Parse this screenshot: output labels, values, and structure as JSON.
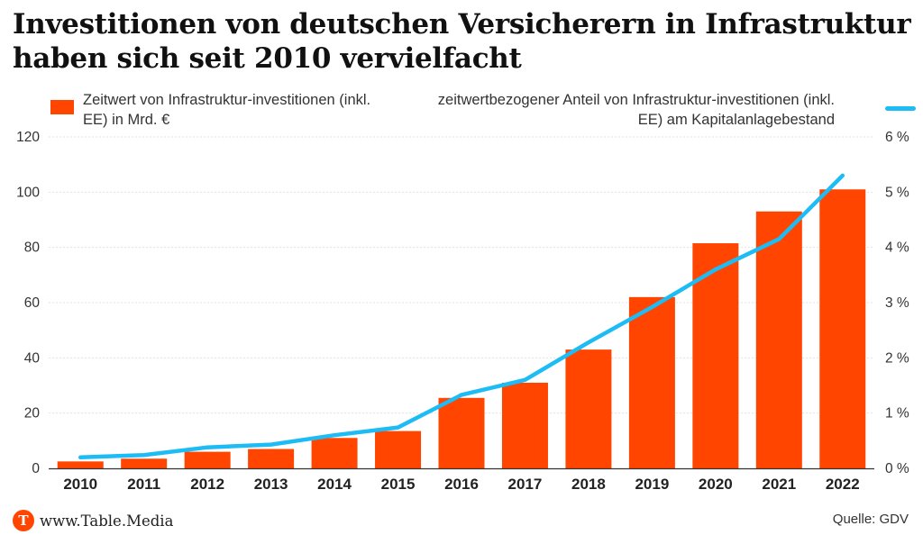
{
  "title": "Investitionen von deutschen Versicherern in Infrastruktur haben sich seit 2010 vervielfacht",
  "legend": {
    "bars_label": "Zeitwert von Infrastruktur-investitionen (inkl. EE) in Mrd. €",
    "line_label": "zeitwertbezogener Anteil von Infrastruktur-investitionen (inkl. EE) am Kapitalanlagebestand"
  },
  "footer": {
    "brand": "www.Table.Media",
    "source": "Quelle: GDV",
    "logo_letter": "T"
  },
  "colors": {
    "bar": "#ff4500",
    "line": "#1ebcf5",
    "logo": "#ff4500",
    "grid": "#e2e2e2"
  },
  "chart_data": {
    "type": "bar",
    "categories": [
      "2010",
      "2011",
      "2012",
      "2013",
      "2014",
      "2015",
      "2016",
      "2017",
      "2018",
      "2019",
      "2020",
      "2021",
      "2022"
    ],
    "series": [
      {
        "name": "Zeitwert von Infrastruktur-investitionen (inkl. EE) in Mrd. €",
        "type": "bar",
        "axis": "left",
        "values": [
          2.5,
          3.5,
          6,
          7,
          11,
          13.5,
          25.5,
          31,
          43,
          62,
          81.5,
          93,
          101
        ]
      },
      {
        "name": "zeitwertbezogener Anteil von Infrastruktur-investitionen (inkl. EE) am Kapitalanlagebestand",
        "type": "line",
        "axis": "right",
        "values": [
          0.2,
          0.24,
          0.38,
          0.43,
          0.6,
          0.74,
          1.33,
          1.6,
          2.28,
          2.92,
          3.6,
          4.15,
          5.3
        ]
      }
    ],
    "y_left": {
      "ylim": [
        0,
        120
      ],
      "ticks": [
        "0",
        "20",
        "40",
        "60",
        "80",
        "100",
        "120"
      ]
    },
    "y_right": {
      "ylim": [
        0,
        6
      ],
      "ticks": [
        "0 %",
        "1 %",
        "2 %",
        "3 %",
        "4 %",
        "5 %",
        "6 %"
      ]
    },
    "grid": true,
    "legend_position": "top"
  }
}
